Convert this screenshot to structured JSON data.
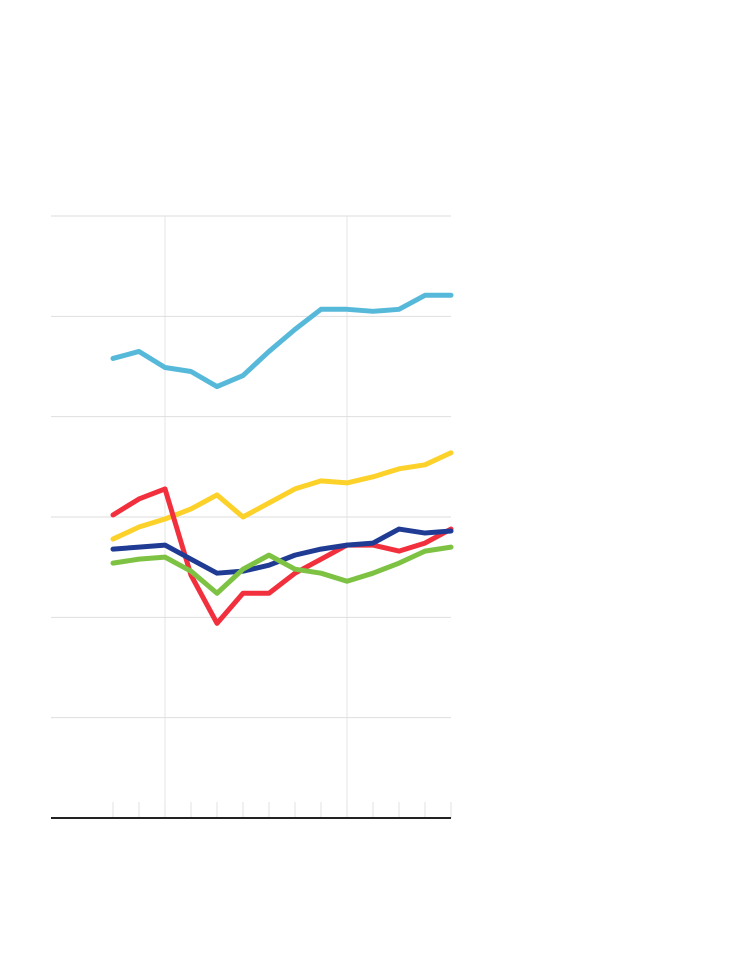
{
  "chart_data": {
    "type": "line",
    "categories": [
      null,
      null,
      null,
      null,
      null,
      null,
      null,
      null,
      null,
      null,
      null,
      null,
      null,
      null
    ],
    "series": [
      {
        "color": "#56b9da",
        "values": [
          4.58,
          4.65,
          4.49,
          4.45,
          4.3,
          4.41,
          4.65,
          4.87,
          5.07,
          5.07,
          5.05,
          5.07,
          5.21,
          5.21
        ]
      },
      {
        "color": "#fcd12a",
        "values": [
          2.78,
          2.9,
          2.98,
          3.08,
          3.22,
          3.0,
          3.14,
          3.28,
          3.36,
          3.34,
          3.4,
          3.48,
          3.52,
          3.64
        ]
      },
      {
        "color": "#f2303d",
        "values": [
          3.02,
          3.18,
          3.28,
          2.42,
          1.94,
          2.24,
          2.24,
          2.44,
          2.58,
          2.72,
          2.72,
          2.66,
          2.74,
          2.88
        ]
      },
      {
        "color": "#1f3b93",
        "values": [
          2.68,
          2.7,
          2.72,
          2.58,
          2.44,
          2.46,
          2.52,
          2.62,
          2.68,
          2.72,
          2.74,
          2.88,
          2.84,
          2.86
        ]
      },
      {
        "color": "#7dc242",
        "values": [
          2.54,
          2.58,
          2.6,
          2.46,
          2.24,
          2.48,
          2.62,
          2.48,
          2.44,
          2.36,
          2.44,
          2.54,
          2.66,
          2.7
        ]
      }
    ],
    "ylim": [
      0,
      6
    ],
    "yticks": [
      0,
      1,
      2,
      3,
      4,
      5,
      6
    ],
    "grid": true
  }
}
